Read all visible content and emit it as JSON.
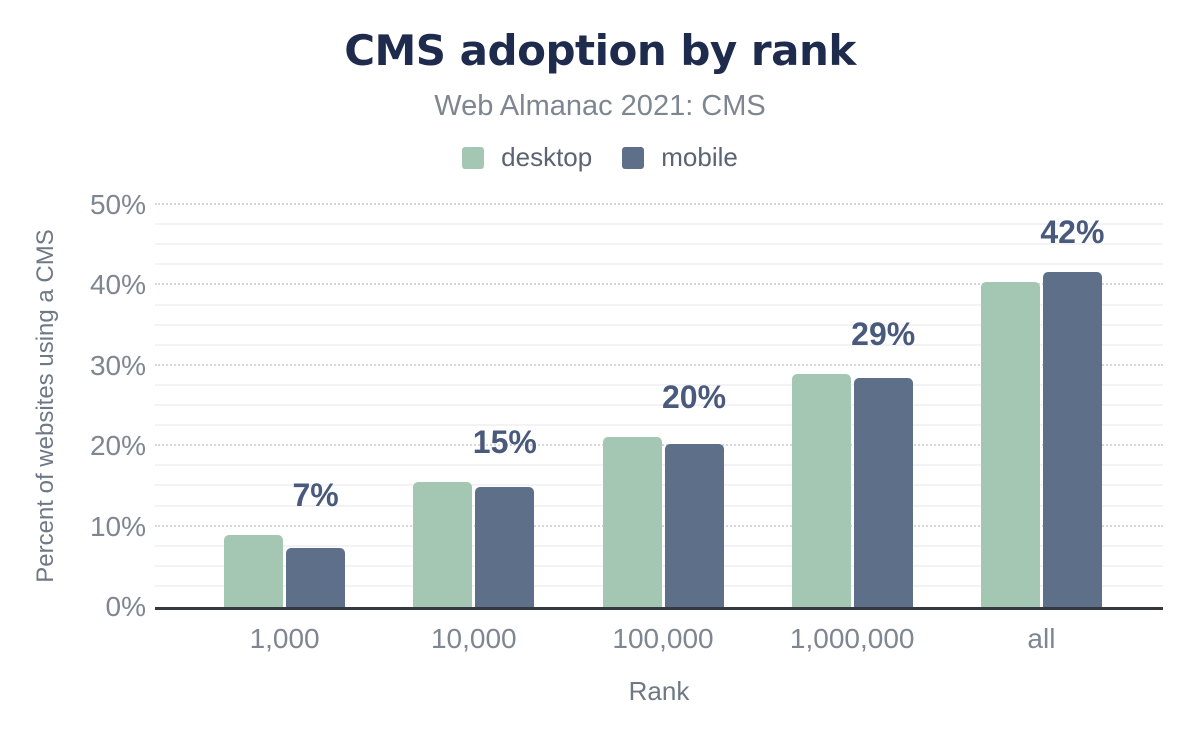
{
  "chart_data": {
    "type": "bar",
    "title": "CMS adoption by rank",
    "subtitle": "Web Almanac 2021: CMS",
    "xlabel": "Rank",
    "ylabel": "Percent of websites using a CMS",
    "categories": [
      "1,000",
      "10,000",
      "100,000",
      "1,000,000",
      "all"
    ],
    "series": [
      {
        "name": "desktop",
        "color": "#a4c7b4",
        "values": [
          8.9,
          15.6,
          21.1,
          29.0,
          40.4
        ]
      },
      {
        "name": "mobile",
        "color": "#5e7089",
        "values": [
          7.3,
          14.9,
          20.3,
          28.5,
          41.7
        ]
      }
    ],
    "bar_labels": [
      "7%",
      "15%",
      "20%",
      "29%",
      "42%"
    ],
    "ylim": [
      0,
      50
    ],
    "ytick_step": 10,
    "minor_tick_step": 2.5,
    "yticks": [
      "0%",
      "10%",
      "20%",
      "30%",
      "40%",
      "50%"
    ],
    "legend_position": "top",
    "grid": "horizontal: dotted major lines every 10%, faint solid minor lines every 2.5%"
  },
  "colors": {
    "title_text": "#1e2b4d",
    "subtitle_text": "#7e8692",
    "legend_text": "#5b6472",
    "tick_text": "#7e8692",
    "axis_title_text": "#6f7885",
    "value_label_text": "#4a5a7c",
    "axis_line": "#35383e",
    "grid_major": "#d7d7d9",
    "grid_minor": "#f3f3f5",
    "desktop_bar": "#a4c7b4",
    "mobile_bar": "#5e7089",
    "background": "#ffffff"
  }
}
